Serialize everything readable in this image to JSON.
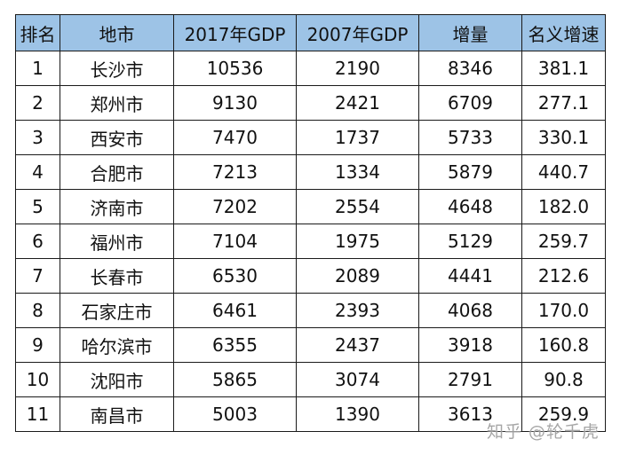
{
  "headers": [
    "排名",
    "地市",
    "2017年GDP",
    "2007年GDP",
    "增量",
    "名义增速"
  ],
  "rows": [
    [
      "1",
      "长沙市",
      "10536",
      "2190",
      "8346",
      "381.1"
    ],
    [
      "2",
      "郑州市",
      "9130",
      "2421",
      "6709",
      "277.1"
    ],
    [
      "3",
      "西安市",
      "7470",
      "1737",
      "5733",
      "330.1"
    ],
    [
      "4",
      "合肥市",
      "7213",
      "1334",
      "5879",
      "440.7"
    ],
    [
      "5",
      "济南市",
      "7202",
      "2554",
      "4648",
      "182.0"
    ],
    [
      "6",
      "福州市",
      "7104",
      "1975",
      "5129",
      "259.7"
    ],
    [
      "7",
      "长春市",
      "6530",
      "2089",
      "4441",
      "212.6"
    ],
    [
      "8",
      "石家庄市",
      "6461",
      "2393",
      "4068",
      "170.0"
    ],
    [
      "9",
      "哈尔滨市",
      "6355",
      "2437",
      "3918",
      "160.8"
    ],
    [
      "10",
      "沈阳市",
      "5865",
      "3074",
      "2791",
      "90.8"
    ],
    [
      "11",
      "南昌市",
      "5003",
      "1390",
      "3613",
      "259.9"
    ]
  ],
  "watermark": "知乎 @轮千虎",
  "colors": {
    "header_background": "#9dc3e6",
    "border": "#1a1a1a",
    "text": "#111111"
  }
}
